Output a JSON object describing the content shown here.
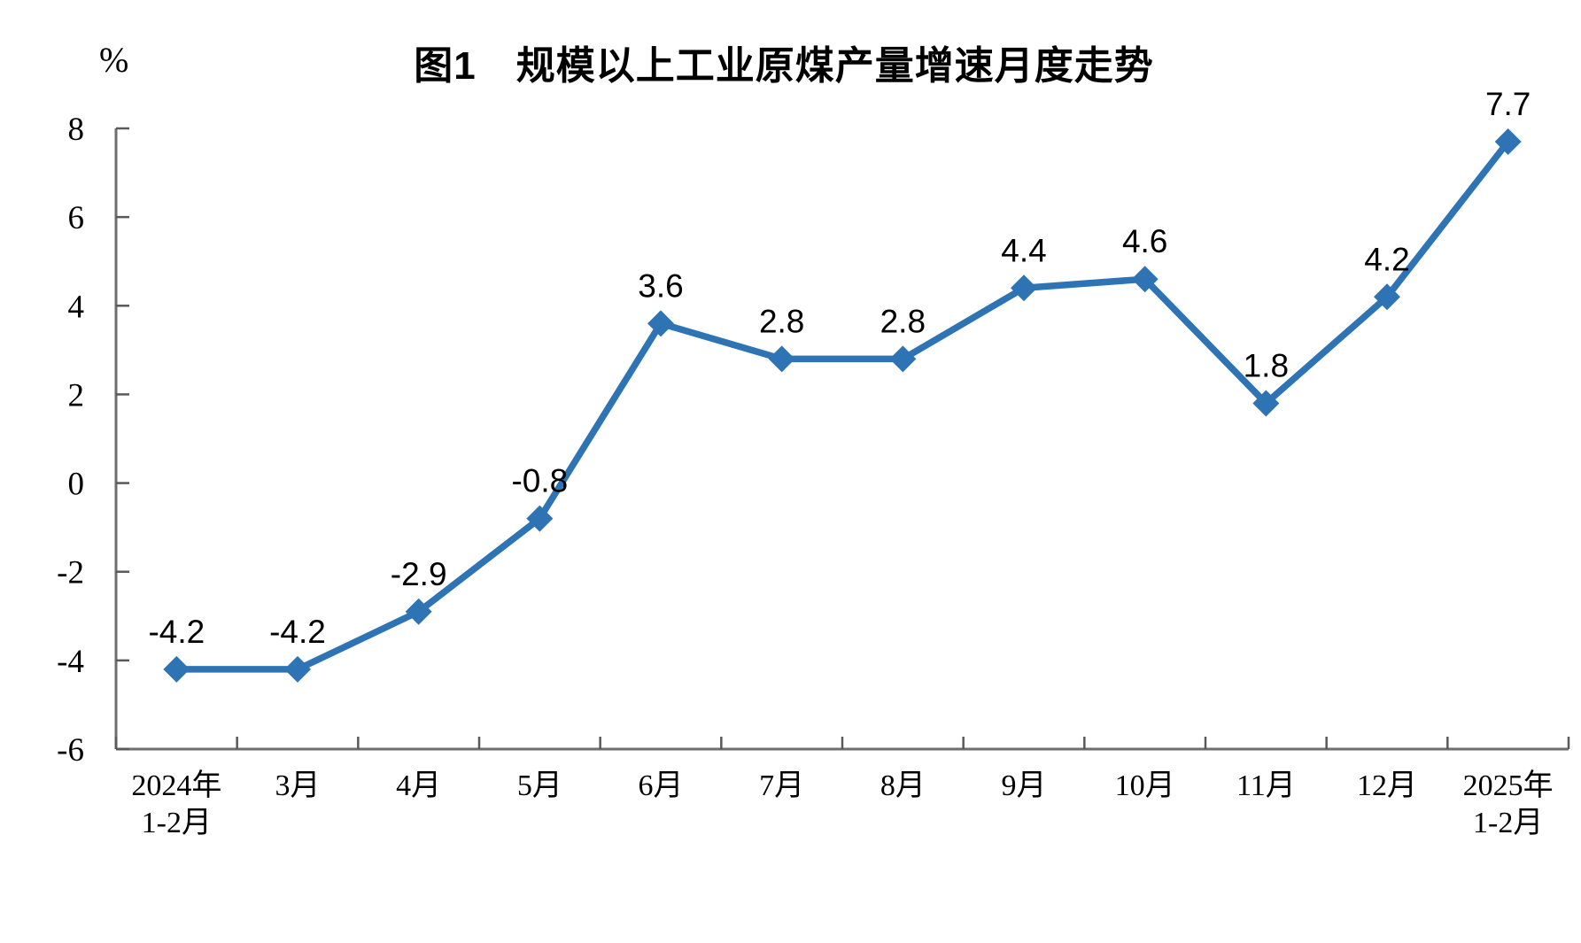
{
  "chart_data": {
    "type": "line",
    "title": "图1　规模以上工业原煤产量增速月度走势",
    "unit_label": "%",
    "categories": [
      [
        "2024年",
        "1-2月"
      ],
      [
        "3月"
      ],
      [
        "4月"
      ],
      [
        "5月"
      ],
      [
        "6月"
      ],
      [
        "7月"
      ],
      [
        "8月"
      ],
      [
        "9月"
      ],
      [
        "10月"
      ],
      [
        "11月"
      ],
      [
        "12月"
      ],
      [
        "2025年",
        "1-2月"
      ]
    ],
    "series": [
      {
        "name": "规模以上工业原煤产量增速",
        "values": [
          -4.2,
          -4.2,
          -2.9,
          -0.8,
          3.6,
          2.8,
          2.8,
          4.4,
          4.6,
          1.8,
          4.2,
          7.7
        ],
        "data_labels": [
          "-4.2",
          "-4.2",
          "-2.9",
          "-0.8",
          "3.6",
          "2.8",
          "2.8",
          "4.4",
          "4.6",
          "1.8",
          "4.2",
          "7.7"
        ]
      }
    ],
    "ylabel": "%",
    "xlabel": "",
    "ylim": [
      -6,
      8
    ],
    "ytick_step": 2,
    "ytick_labels": [
      "8",
      "6",
      "4",
      "2",
      "0",
      "-2",
      "-4",
      "-6"
    ],
    "grid": false,
    "legend_position": "none",
    "marker": "diamond",
    "colors": {
      "series_line": "#2E74B5",
      "marker_fill": "#2E74B5",
      "axis_line": "#6E6E6E",
      "tick_mark": "#595959",
      "label_text": "#000000"
    }
  }
}
